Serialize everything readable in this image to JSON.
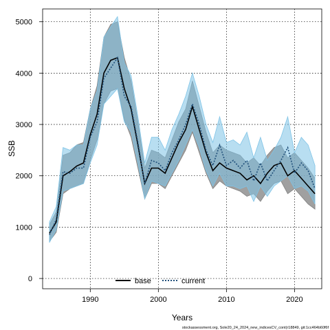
{
  "chart_data": {
    "type": "line",
    "xlabel": "Years",
    "ylabel": "SSB",
    "xlim": [
      1983,
      2024
    ],
    "ylim": [
      -200,
      5250
    ],
    "x_ticks": [
      1990,
      2000,
      2010,
      2020
    ],
    "y_ticks": [
      0,
      1000,
      2000,
      3000,
      4000,
      5000
    ],
    "grid": true,
    "legend_position": "bottom",
    "footnote": "stockassessment.org, Sole20_24_2024_new_indicesCV_cont(r18849, git:1cc464b60f6f",
    "x": [
      1984,
      1985,
      1986,
      1987,
      1988,
      1989,
      1990,
      1991,
      1992,
      1993,
      1994,
      1995,
      1996,
      1997,
      1998,
      1999,
      2000,
      2001,
      2002,
      2003,
      2004,
      2005,
      2006,
      2007,
      2008,
      2009,
      2010,
      2011,
      2012,
      2013,
      2014,
      2015,
      2016,
      2017,
      2018,
      2019,
      2020,
      2021,
      2022,
      2023
    ],
    "series": [
      {
        "name": "base",
        "color": "#000000",
        "dash": "solid",
        "band_color": "#808080",
        "values": [
          880,
          1100,
          2000,
          2080,
          2190,
          2250,
          2800,
          3200,
          4000,
          4250,
          4300,
          3700,
          3300,
          2600,
          1850,
          2150,
          2150,
          2050,
          2350,
          2650,
          2900,
          3350,
          2900,
          2450,
          2100,
          2250,
          2150,
          2100,
          2050,
          1920,
          2000,
          1850,
          2050,
          2200,
          2250,
          2000,
          2100,
          1950,
          1800,
          1650
        ],
        "lower": [
          720,
          900,
          1650,
          1750,
          1800,
          1850,
          2300,
          2700,
          3400,
          3650,
          3700,
          3100,
          2750,
          2150,
          1550,
          1850,
          1850,
          1750,
          2000,
          2250,
          2500,
          2850,
          2450,
          2050,
          1750,
          1900,
          1800,
          1750,
          1700,
          1600,
          1650,
          1500,
          1700,
          1850,
          1900,
          1650,
          1750,
          1600,
          1450,
          1350
        ],
        "upper": [
          1050,
          1300,
          2400,
          2450,
          2600,
          2650,
          3300,
          3750,
          4700,
          4950,
          5000,
          4300,
          3850,
          3050,
          2150,
          2500,
          2450,
          2350,
          2700,
          3050,
          3300,
          3850,
          3350,
          2850,
          2450,
          2600,
          2500,
          2450,
          2400,
          2250,
          2350,
          2200,
          2400,
          2550,
          2600,
          2350,
          2450,
          2300,
          2150,
          1950
        ]
      },
      {
        "name": "current",
        "color": "#1f4f7a",
        "dash": "dotted",
        "band_color": "#7ec3e6",
        "values": [
          850,
          1150,
          2080,
          2050,
          2150,
          2150,
          2750,
          3050,
          3900,
          4100,
          4300,
          3550,
          3350,
          2650,
          1850,
          2300,
          2250,
          2100,
          2450,
          2700,
          3000,
          3400,
          3000,
          2500,
          2200,
          2600,
          2200,
          2300,
          2150,
          2300,
          1900,
          2250,
          1900,
          2100,
          2300,
          2550,
          2050,
          2250,
          2100,
          1750
        ],
        "lower": [
          700,
          950,
          1700,
          1750,
          1800,
          1850,
          2250,
          2600,
          3400,
          3550,
          3700,
          3050,
          2850,
          2250,
          1550,
          1900,
          1850,
          1800,
          2050,
          2300,
          2600,
          2900,
          2550,
          2100,
          1800,
          2050,
          1800,
          1800,
          1750,
          1800,
          1500,
          1800,
          1600,
          1800,
          1900,
          2000,
          1750,
          1800,
          1700,
          1450
        ],
        "upper": [
          1100,
          1400,
          2550,
          2500,
          2600,
          2600,
          3300,
          3650,
          4700,
          4900,
          5100,
          4200,
          3950,
          3150,
          2250,
          2750,
          2750,
          2500,
          2900,
          3200,
          3550,
          4000,
          3550,
          3000,
          2650,
          3150,
          2650,
          2700,
          2600,
          2850,
          2350,
          2750,
          2300,
          2500,
          2750,
          3150,
          2450,
          2750,
          2600,
          2200
        ]
      }
    ]
  },
  "colors": {
    "frame": "#000000",
    "grid": "#000000",
    "overlap_band": "#6a8fa0"
  }
}
